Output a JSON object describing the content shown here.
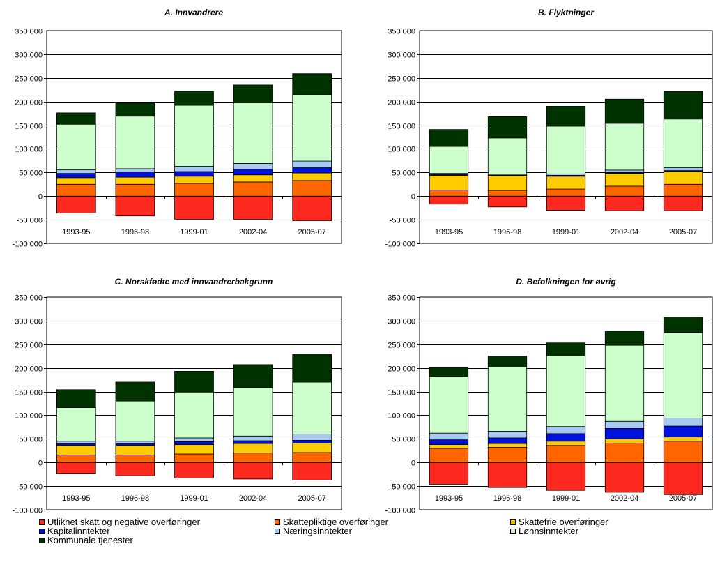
{
  "chart_data": [
    {
      "type": "bar",
      "stacked": true,
      "title": "A. Innvandrere",
      "categories": [
        "1993-95",
        "1996-98",
        "1999-01",
        "2002-04",
        "2005-07"
      ],
      "ylim": [
        -100000,
        350000
      ],
      "yticks": [
        -100000,
        -50000,
        0,
        50000,
        100000,
        150000,
        200000,
        250000,
        300000,
        350000
      ],
      "ytick_labels": [
        "-100 000",
        "-50 000",
        "0",
        "50 000",
        "100 000",
        "150 000",
        "200 000",
        "250 000",
        "300 000",
        "350 000"
      ],
      "series": [
        {
          "values": [
            -36000,
            -42000,
            -49000,
            -49000,
            -52000
          ]
        },
        {
          "values": [
            25000,
            25000,
            27000,
            30000,
            33000
          ]
        },
        {
          "values": [
            14000,
            15000,
            15000,
            15000,
            16000
          ]
        },
        {
          "values": [
            9000,
            11000,
            10000,
            12000,
            11000
          ]
        },
        {
          "values": [
            8000,
            7000,
            11000,
            12000,
            14000
          ]
        },
        {
          "values": [
            96000,
            111000,
            129000,
            130000,
            141000
          ]
        },
        {
          "values": [
            24000,
            29000,
            30000,
            36000,
            44000
          ]
        }
      ]
    },
    {
      "type": "bar",
      "stacked": true,
      "title": "B. Flyktninger",
      "categories": [
        "1993-95",
        "1996-98",
        "1999-01",
        "2002-04",
        "2005-07"
      ],
      "ylim": [
        -100000,
        350000
      ],
      "yticks": [
        -100000,
        -50000,
        0,
        50000,
        100000,
        150000,
        200000,
        250000,
        300000,
        350000
      ],
      "ytick_labels": [
        "-100 000",
        "-50 000",
        "0",
        "50 000",
        "100 000",
        "150 000",
        "200 000",
        "250 000",
        "300 000",
        "350 000"
      ],
      "series": [
        {
          "values": [
            -17000,
            -23000,
            -30000,
            -31000,
            -31000
          ]
        },
        {
          "values": [
            13000,
            12000,
            15000,
            21000,
            25000
          ]
        },
        {
          "values": [
            31000,
            31000,
            27000,
            27000,
            27000
          ]
        },
        {
          "values": [
            2000,
            1000,
            2000,
            2000,
            2000
          ]
        },
        {
          "values": [
            2000,
            2000,
            3000,
            5000,
            6000
          ]
        },
        {
          "values": [
            57000,
            77000,
            101000,
            99000,
            103000
          ]
        },
        {
          "values": [
            36000,
            45000,
            42000,
            51000,
            58000
          ]
        }
      ]
    },
    {
      "type": "bar",
      "stacked": true,
      "title": "C. Norskfødte med innvandrerbakgrunn",
      "categories": [
        "1993-95",
        "1996-98",
        "1999-01",
        "2002-04",
        "2005-07"
      ],
      "ylim": [
        -100000,
        350000
      ],
      "yticks": [
        -100000,
        -50000,
        0,
        50000,
        100000,
        150000,
        200000,
        250000,
        300000,
        350000
      ],
      "ytick_labels": [
        "-100 000",
        "-50 000",
        "0",
        "50 000",
        "100 000",
        "150 000",
        "200 000",
        "250 000",
        "300 000",
        "350 000"
      ],
      "series": [
        {
          "values": [
            -24000,
            -28000,
            -33000,
            -35000,
            -37000
          ]
        },
        {
          "values": [
            16000,
            16000,
            18000,
            20000,
            21000
          ]
        },
        {
          "values": [
            20000,
            20000,
            20000,
            20000,
            20000
          ]
        },
        {
          "values": [
            4000,
            4000,
            6000,
            6000,
            6000
          ]
        },
        {
          "values": [
            5000,
            5000,
            8000,
            10000,
            13000
          ]
        },
        {
          "values": [
            71000,
            85000,
            97000,
            103000,
            110000
          ]
        },
        {
          "values": [
            38000,
            40000,
            44000,
            48000,
            59000
          ]
        }
      ]
    },
    {
      "type": "bar",
      "stacked": true,
      "title": "D. Befolkningen for øvrig",
      "categories": [
        "1993-95",
        "1996-98",
        "1999-01",
        "2002-04",
        "2005-07"
      ],
      "ylim": [
        -100000,
        350000
      ],
      "yticks": [
        -100000,
        -50000,
        0,
        50000,
        100000,
        150000,
        200000,
        250000,
        300000,
        350000
      ],
      "ytick_labels": [
        "-100 000",
        "-50 000",
        "0",
        "50 000",
        "100 000",
        "150 000",
        "200 000",
        "250 000",
        "300 000",
        "350 000"
      ],
      "series": [
        {
          "values": [
            -46000,
            -53000,
            -59000,
            -63000,
            -68000
          ]
        },
        {
          "values": [
            30000,
            32000,
            36000,
            41000,
            45000
          ]
        },
        {
          "values": [
            8000,
            8000,
            9000,
            9000,
            9000
          ]
        },
        {
          "values": [
            10000,
            12000,
            16000,
            22000,
            23000
          ]
        },
        {
          "values": [
            14000,
            14000,
            15000,
            15000,
            17000
          ]
        },
        {
          "values": [
            120000,
            136000,
            151000,
            161000,
            181000
          ]
        },
        {
          "values": [
            19000,
            23000,
            26000,
            30000,
            33000
          ]
        }
      ]
    }
  ],
  "legend": {
    "items": [
      {
        "label": "Utliknet skatt og negative overføringer",
        "color": "#FF2A1F"
      },
      {
        "label": "Skattepliktige overføringer",
        "color": "#FF6600"
      },
      {
        "label": "Skattefrie overføringer",
        "color": "#FFCC00"
      },
      {
        "label": "Kapitalinntekter",
        "color": "#0011DD"
      },
      {
        "label": "Næringsinntekter",
        "color": "#A6CAF0"
      },
      {
        "label": "Lønnsinntekter",
        "color": "#CCFFCC"
      },
      {
        "label": "Kommunale tjenester",
        "color": "#003300"
      }
    ]
  }
}
